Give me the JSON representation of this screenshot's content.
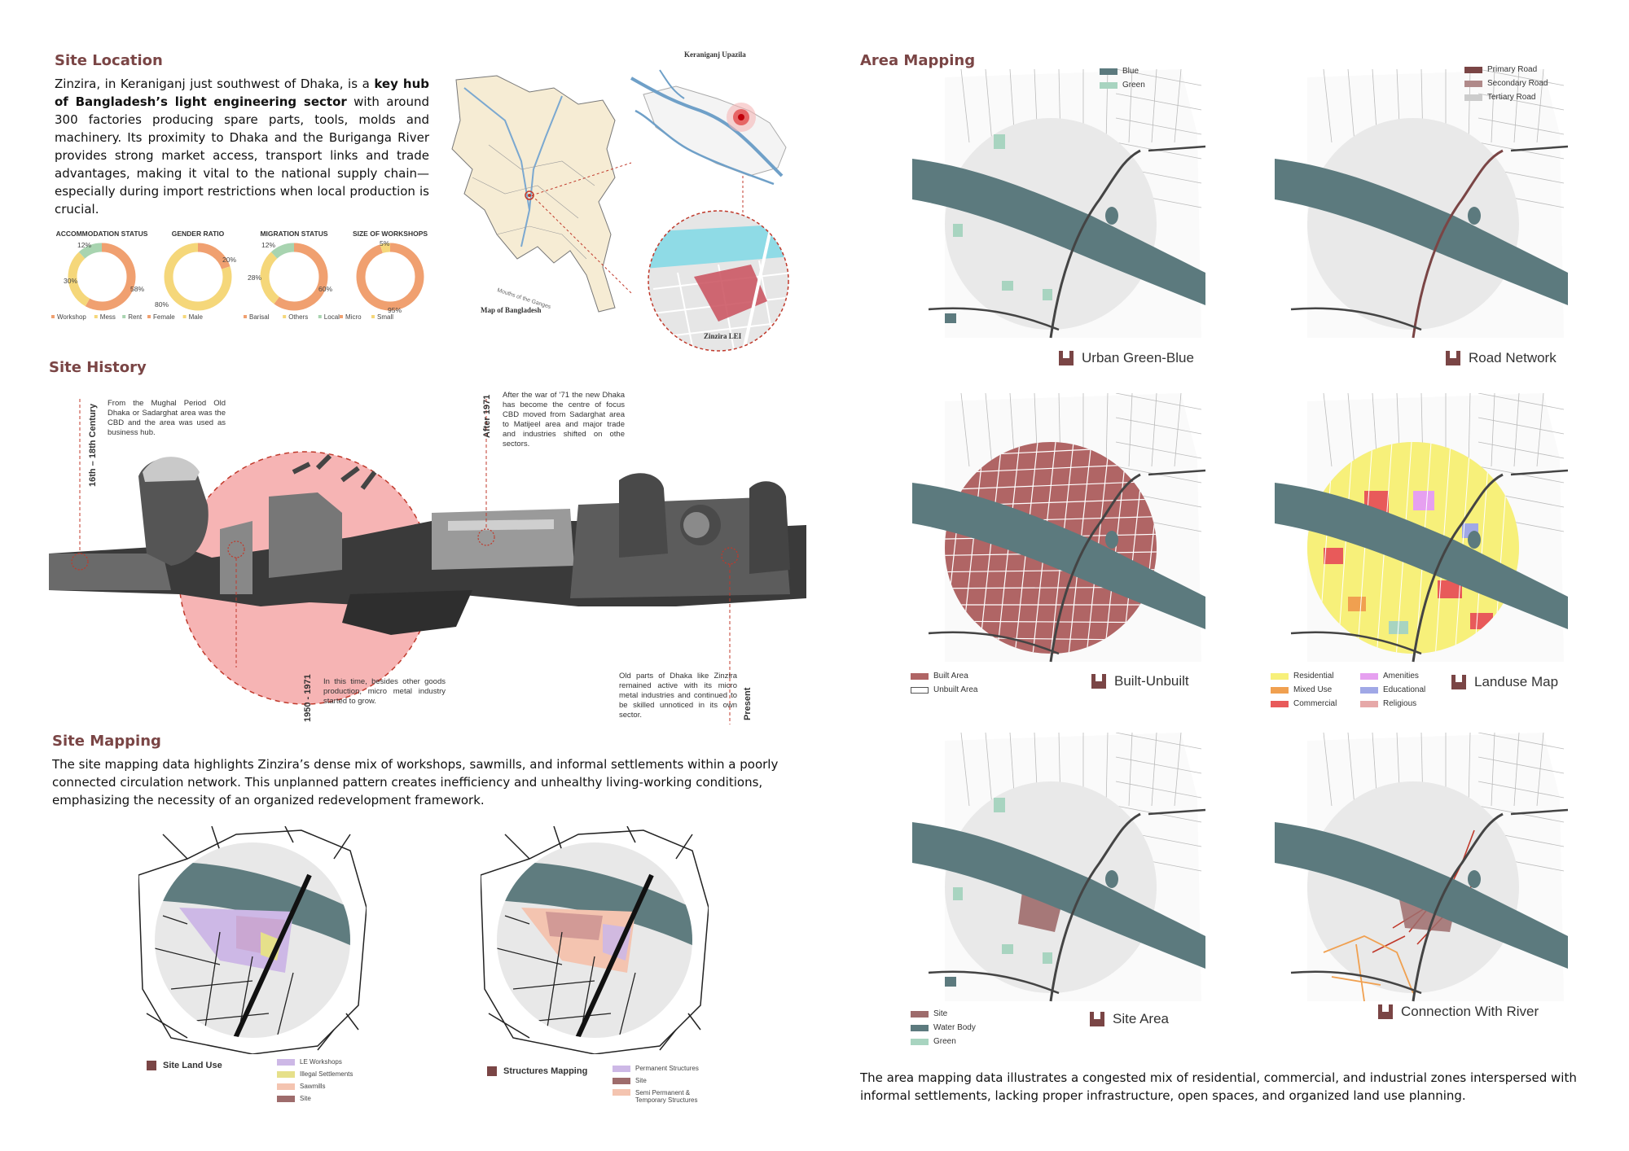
{
  "site_location": {
    "heading": "Site Location",
    "para_1": "Zinzira, in Keraniganj just southwest of Dhaka, is a ",
    "para_bold": "key hub of Bangladesh’s light engineering sector",
    "para_2": " with around 300 factories producing spare parts, tools, molds and machinery. Its proximity to Dhaka and the Buriganga River provides strong market access, transport links and trade advantages, making it vital to the national supply chain—especially during import restrictions when local production is crucial."
  },
  "donuts": [
    {
      "title": "ACCOMMODATION STATUS",
      "labels": [
        "12%",
        "30%",
        "58%"
      ],
      "legend": [
        "Workshop",
        "Mess",
        "Rent"
      ],
      "values": [
        58,
        30,
        12
      ],
      "colors": [
        "#f0a070",
        "#f5d77a",
        "#a8d4b0"
      ]
    },
    {
      "title": "GENDER RATIO",
      "labels": [
        "20%",
        "80%"
      ],
      "legend": [
        "Female",
        "Male"
      ],
      "values": [
        20,
        80
      ],
      "colors": [
        "#f0a070",
        "#f5d77a"
      ]
    },
    {
      "title": "MIGRATION STATUS",
      "labels": [
        "12%",
        "28%",
        "60%"
      ],
      "legend": [
        "Barisal",
        "Others",
        "Local"
      ],
      "values": [
        60,
        28,
        12
      ],
      "colors": [
        "#f0a070",
        "#f5d77a",
        "#a8d4b0"
      ]
    },
    {
      "title": "SIZE OF WORKSHOPS",
      "labels": [
        "5%",
        "95%"
      ],
      "legend": [
        "Micro",
        "Small"
      ],
      "values": [
        95,
        5
      ],
      "colors": [
        "#f0a070",
        "#f5d77a"
      ]
    }
  ],
  "location_maps": {
    "bangladesh_caption": "Map of Bangladesh",
    "upazila_caption": "Keraniganj Upazila",
    "lei_caption": "Zinzira LEI",
    "bay_label": "Mouths of the Ganges"
  },
  "site_history": {
    "heading": "Site History",
    "events": [
      {
        "period": "16th – 18th Century",
        "text": "From the Mughal Period Old Dhaka or Sadarghat area was the CBD and the area was used as business hub."
      },
      {
        "period": "After 1971",
        "text": "After the war of '71 the new Dhaka has become the centre of focus CBD moved from Sadarghat area to Matijeel area and major trade and industries shifted on othe sectors."
      },
      {
        "period": "1950 - 1971",
        "text": "In this time, besides other goods production, micro metal industry started to grow."
      },
      {
        "period": "Present",
        "text": "Old parts of Dhaka like Zinzira remained active with its micro metal industries and continued to be skilled unnoticed in its own sector."
      }
    ]
  },
  "site_mapping": {
    "heading": "Site Mapping",
    "para": "The site mapping data highlights Zinzira’s dense mix of workshops, sawmills, and informal settlements within a poorly connected circulation network. This unplanned pattern creates inefficiency and unhealthy living-working conditions, emphasizing the necessity of an organized redevelopment framework.",
    "land_use": {
      "title": "Site Land Use",
      "legend": [
        {
          "label": "LE Workshops",
          "color": "#cdb8e6"
        },
        {
          "label": "Illegal Settlements",
          "color": "#e6e08a"
        },
        {
          "label": "Sawmills",
          "color": "#f4c4b0"
        },
        {
          "label": "Site",
          "color": "#9e6c6c"
        }
      ]
    },
    "structures": {
      "title": "Structures Mapping",
      "legend": [
        {
          "label": "Permanent Structures",
          "color": "#cdb8e6"
        },
        {
          "label": "Site",
          "color": "#9e6c6c"
        },
        {
          "label": "Semi Permanent & Temporary Structures",
          "color": "#f4c4b0"
        }
      ]
    }
  },
  "area_mapping": {
    "heading": "Area Mapping",
    "maps": [
      {
        "title": "Urban Green-Blue",
        "legend": [
          {
            "label": "Blue",
            "color": "#5c7a7e"
          },
          {
            "label": "Green",
            "color": "#a8d4c0"
          }
        ]
      },
      {
        "title": "Road Network",
        "legend": [
          {
            "label": "Primary Road",
            "color": "#7a4545"
          },
          {
            "label": "Secondary Road",
            "color": "#b08a8a"
          },
          {
            "label": "Tertiary Road",
            "color": "#cccccc"
          }
        ]
      },
      {
        "title": "Built-Unbuilt",
        "legend": [
          {
            "label": "Built Area",
            "color": "#b06565"
          },
          {
            "label": "Unbuilt Area",
            "color": "#ffffff"
          }
        ]
      },
      {
        "title": "Landuse Map",
        "legend": [
          {
            "label": "Residential",
            "color": "#f7f07a"
          },
          {
            "label": "Mixed Use",
            "color": "#f0a050"
          },
          {
            "label": "Commercial",
            "color": "#e85a5a"
          },
          {
            "label": "Amenities",
            "color": "#e6a0f0"
          },
          {
            "label": "Educational",
            "color": "#a0a8e6"
          },
          {
            "label": "Religious",
            "color": "#e6a8a8"
          }
        ]
      },
      {
        "title": "Site Area",
        "legend": [
          {
            "label": "Site",
            "color": "#9e6c6c"
          },
          {
            "label": "Water Body",
            "color": "#5c7a7e"
          },
          {
            "label": "Green",
            "color": "#a8d4c0"
          }
        ]
      },
      {
        "title": "Connection With River",
        "legend": []
      }
    ],
    "para": "The area mapping data illustrates a congested mix of residential, commercial, and industrial zones interspersed with informal settlements, lacking proper infrastructure, open spaces, and organized land use planning."
  }
}
